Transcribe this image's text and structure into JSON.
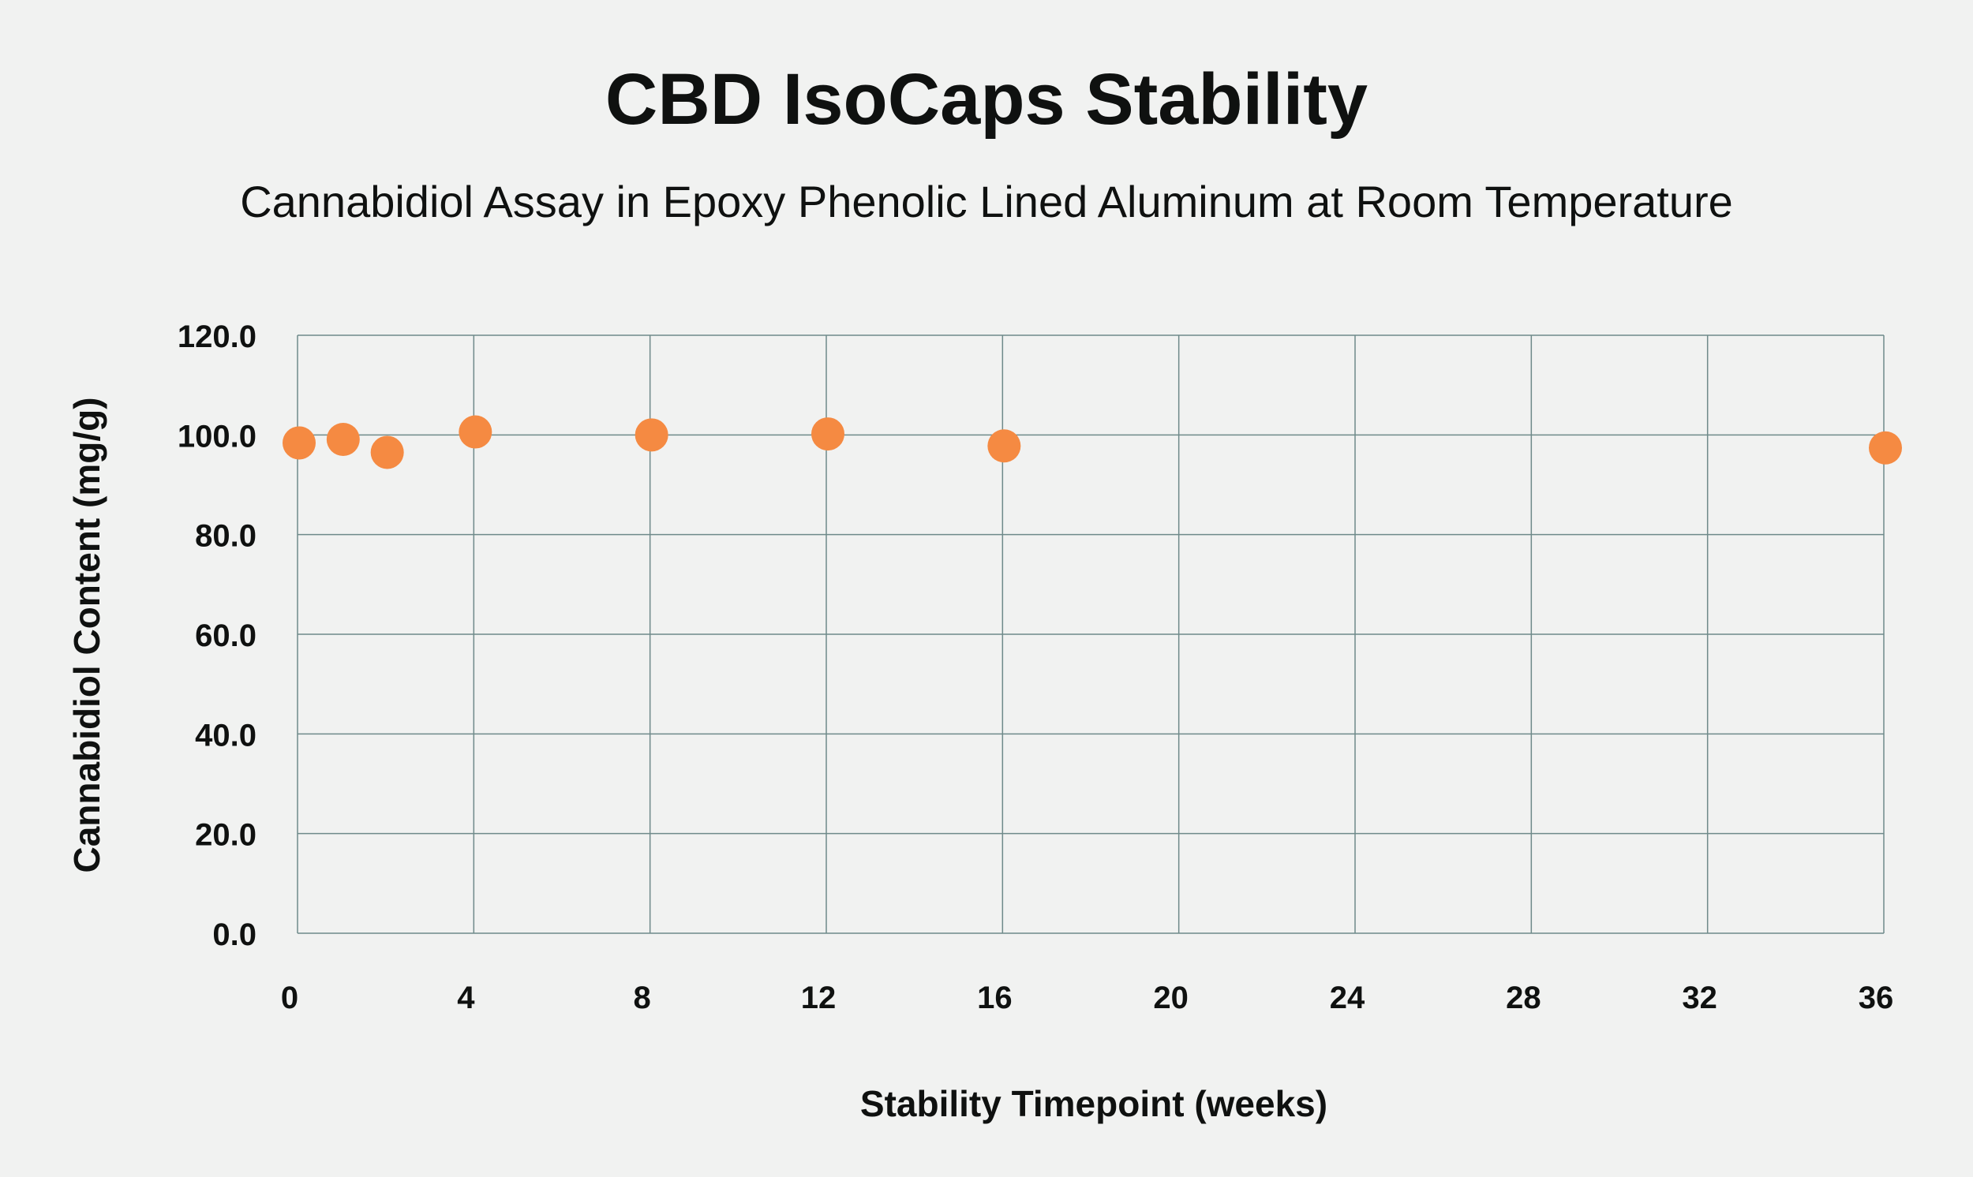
{
  "chart_data": {
    "type": "scatter",
    "title": "CBD IsoCaps Stability",
    "subtitle": "Cannabidiol Assay in Epoxy Phenolic Lined Aluminum at Room Temperature",
    "xlabel": "Stability Timepoint (weeks)",
    "ylabel": "Cannabidiol Content (mg/g)",
    "xlim": [
      0,
      36
    ],
    "ylim": [
      0,
      120
    ],
    "x_ticks": [
      0,
      4,
      8,
      12,
      16,
      20,
      24,
      28,
      32,
      36
    ],
    "x_tick_labels": [
      "0",
      "4",
      "8",
      "12",
      "16",
      "20",
      "24",
      "28",
      "32",
      "36"
    ],
    "y_ticks": [
      0,
      20,
      40,
      60,
      80,
      100,
      120
    ],
    "y_tick_labels": [
      "0.0",
      "20.0",
      "40.0",
      "60.0",
      "80.0",
      "100.0",
      "120.0"
    ],
    "grid": true,
    "series": [
      {
        "name": "Cannabidiol Content",
        "color": "#f58a42",
        "points": [
          {
            "x": 0,
            "y": 98.4
          },
          {
            "x": 1,
            "y": 99.1
          },
          {
            "x": 2,
            "y": 96.5
          },
          {
            "x": 4,
            "y": 100.6
          },
          {
            "x": 8,
            "y": 100.0
          },
          {
            "x": 12,
            "y": 100.2
          },
          {
            "x": 16,
            "y": 97.8
          },
          {
            "x": 36,
            "y": 97.4
          }
        ]
      }
    ]
  },
  "colors": {
    "background": "#f1f2f1",
    "grid": "#6f8a8a",
    "text": "#0f1110",
    "point": "#f58a42"
  }
}
